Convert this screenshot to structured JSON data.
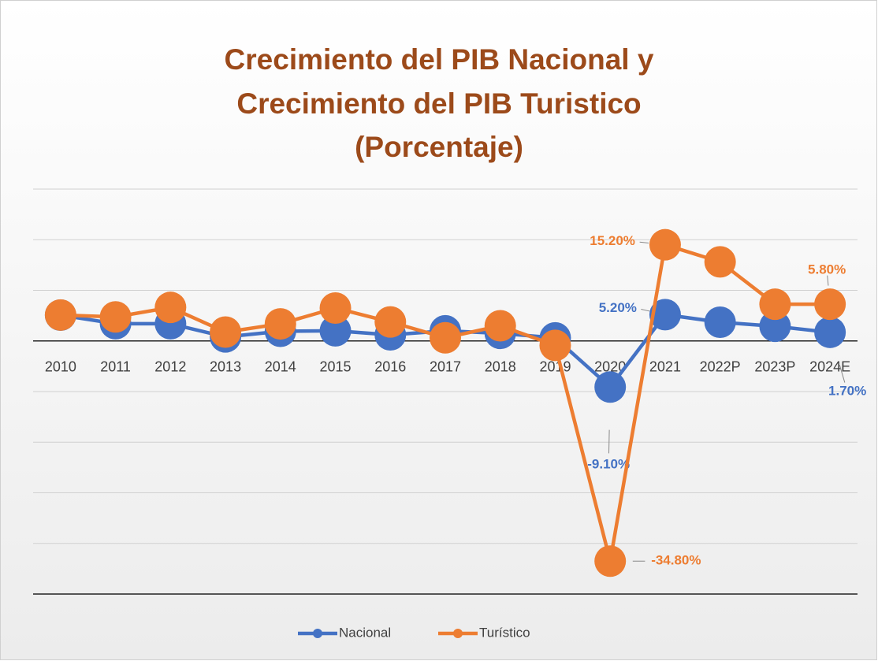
{
  "chart_data": {
    "type": "line",
    "title": [
      "Crecimiento del PIB Nacional y",
      "Crecimiento del PIB Turistico",
      "(Porcentaje)"
    ],
    "categories": [
      "2010",
      "2011",
      "2012",
      "2013",
      "2014",
      "2015",
      "2016",
      "2017",
      "2018",
      "2019",
      "2020",
      "2021",
      "2022P",
      "2023P",
      "2024E"
    ],
    "series": [
      {
        "name": "Nacional",
        "color": "#4472c4",
        "axis": "y2",
        "values": [
          5.1,
          3.4,
          3.4,
          0.8,
          1.9,
          2.0,
          1.2,
          2.0,
          1.5,
          0.6,
          -9.1,
          5.2,
          3.7,
          2.9,
          1.7
        ],
        "value_labels": [
          null,
          null,
          null,
          null,
          null,
          null,
          null,
          null,
          null,
          null,
          "-9.10%",
          "5.20%",
          null,
          null,
          "1.70%"
        ]
      },
      {
        "name": "Turístico",
        "color": "#ed7d31",
        "values": [
          4.1,
          3.8,
          5.3,
          1.4,
          2.7,
          5.2,
          3.0,
          0.5,
          2.4,
          -0.7,
          -34.8,
          15.2,
          12.5,
          5.8,
          5.8
        ],
        "value_labels": [
          null,
          null,
          null,
          null,
          null,
          null,
          null,
          null,
          null,
          null,
          "-34.80%",
          "15.20%",
          null,
          null,
          "5.80%"
        ]
      }
    ],
    "ylim": [
      -40,
      24
    ],
    "yticks": [
      -40,
      -32,
      -24,
      -16,
      -8,
      0,
      8,
      16,
      24
    ],
    "y2lim": [
      -50,
      30
    ],
    "grid": true,
    "legend": "bottom"
  }
}
